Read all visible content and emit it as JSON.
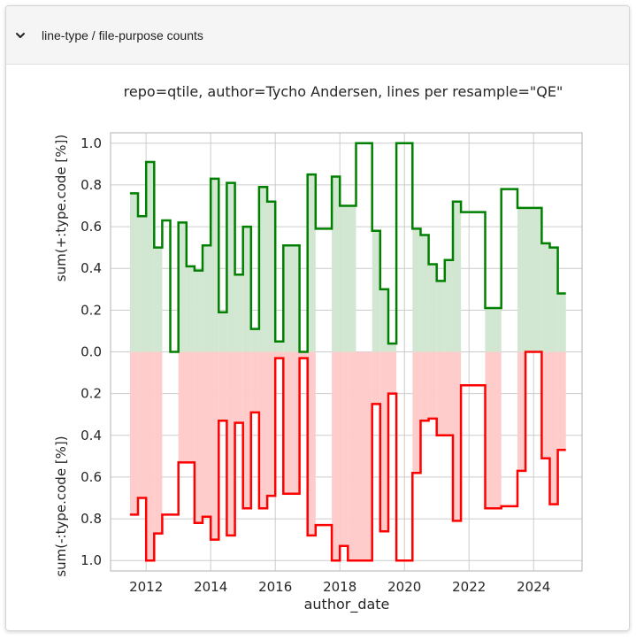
{
  "panel": {
    "title": "line-type / file-purpose counts",
    "toggle_icon": "chevron-down-icon"
  },
  "chart_data": {
    "type": "area",
    "title": "repo=qtile, author=Tycho Andersen, lines per resample=\"QE\"",
    "xlabel": "author_date",
    "ylabel_top": "sum(+:type.code [%])",
    "ylabel_bottom": "sum(-:type.code [%])",
    "x_ticks": [
      "2012",
      "2014",
      "2016",
      "2018",
      "2020",
      "2022",
      "2024"
    ],
    "y_ticks_top": [
      "0.0",
      "0.2",
      "0.4",
      "0.6",
      "0.8",
      "1.0"
    ],
    "y_ticks_bottom": [
      "0.2",
      "0.4",
      "0.6",
      "0.8",
      "1.0"
    ],
    "xlim": [
      2010.9,
      2025.5
    ],
    "ylim": [
      -1.05,
      1.05
    ],
    "step": "post",
    "grid": true,
    "colors": {
      "added_line": "#008000",
      "added_fill": "#d1e7d1",
      "removed_line": "#ff0000",
      "removed_fill": "#ffcccc",
      "grid": "#cccccc",
      "axes": "#bfbfbf"
    },
    "series": [
      {
        "name": "added",
        "values": [
          [
            2011.5,
            0.76
          ],
          [
            2011.75,
            0.65
          ],
          [
            2012.0,
            0.91
          ],
          [
            2012.25,
            0.5
          ],
          [
            2012.5,
            0.63
          ],
          [
            2012.75,
            0.0
          ],
          [
            2013.0,
            0.62
          ],
          [
            2013.25,
            0.41
          ],
          [
            2013.5,
            0.39
          ],
          [
            2013.75,
            0.51
          ],
          [
            2014.0,
            0.83
          ],
          [
            2014.25,
            0.19
          ],
          [
            2014.5,
            0.81
          ],
          [
            2014.75,
            0.37
          ],
          [
            2015.0,
            0.6
          ],
          [
            2015.25,
            0.11
          ],
          [
            2015.5,
            0.79
          ],
          [
            2015.75,
            0.72
          ],
          [
            2016.0,
            0.05
          ],
          [
            2016.25,
            0.51
          ],
          [
            2016.75,
            0.0
          ],
          [
            2017.0,
            0.85
          ],
          [
            2017.25,
            0.59
          ],
          [
            2017.75,
            0.84
          ],
          [
            2018.0,
            0.7
          ],
          [
            2018.5,
            1.0
          ],
          [
            2019.0,
            0.58
          ],
          [
            2019.25,
            0.3
          ],
          [
            2019.5,
            0.04
          ],
          [
            2019.75,
            1.0
          ],
          [
            2020.25,
            0.59
          ],
          [
            2020.5,
            0.56
          ],
          [
            2020.75,
            0.42
          ],
          [
            2021.0,
            0.34
          ],
          [
            2021.25,
            0.44
          ],
          [
            2021.5,
            0.72
          ],
          [
            2021.75,
            0.67
          ],
          [
            2022.5,
            0.21
          ],
          [
            2023.0,
            0.78
          ],
          [
            2023.5,
            0.69
          ],
          [
            2024.25,
            0.52
          ],
          [
            2024.5,
            0.5
          ],
          [
            2024.75,
            0.28
          ]
        ],
        "end": 2025.0
      },
      {
        "name": "removed",
        "values": [
          [
            2011.5,
            0.78
          ],
          [
            2011.75,
            0.7
          ],
          [
            2012.0,
            1.0
          ],
          [
            2012.25,
            0.87
          ],
          [
            2012.5,
            0.78
          ],
          [
            2013.0,
            0.53
          ],
          [
            2013.5,
            0.82
          ],
          [
            2013.75,
            0.79
          ],
          [
            2014.0,
            0.9
          ],
          [
            2014.25,
            0.33
          ],
          [
            2014.5,
            0.88
          ],
          [
            2014.75,
            0.34
          ],
          [
            2015.0,
            0.75
          ],
          [
            2015.25,
            0.29
          ],
          [
            2015.5,
            0.75
          ],
          [
            2015.75,
            0.69
          ],
          [
            2016.0,
            0.03
          ],
          [
            2016.25,
            0.68
          ],
          [
            2016.75,
            0.03
          ],
          [
            2017.0,
            0.88
          ],
          [
            2017.25,
            0.83
          ],
          [
            2017.75,
            1.0
          ],
          [
            2018.0,
            0.93
          ],
          [
            2018.25,
            1.0
          ],
          [
            2019.0,
            0.25
          ],
          [
            2019.25,
            0.86
          ],
          [
            2019.5,
            0.2
          ],
          [
            2019.75,
            1.0
          ],
          [
            2020.25,
            0.58
          ],
          [
            2020.5,
            0.33
          ],
          [
            2020.75,
            0.32
          ],
          [
            2021.0,
            0.4
          ],
          [
            2021.5,
            0.81
          ],
          [
            2021.75,
            0.16
          ],
          [
            2022.5,
            0.75
          ],
          [
            2023.0,
            0.74
          ],
          [
            2023.5,
            0.57
          ],
          [
            2023.75,
            0.0
          ],
          [
            2024.25,
            0.51
          ],
          [
            2024.5,
            0.73
          ],
          [
            2024.75,
            0.47
          ]
        ],
        "end": 2025.0
      }
    ],
    "fill_gaps": [
      [
        2012.5,
        2013.0
      ],
      [
        2017.25,
        2017.75
      ],
      [
        2018.5,
        2019.0
      ],
      [
        2019.75,
        2020.25
      ],
      [
        2021.75,
        2022.5
      ],
      [
        2023.0,
        2023.5
      ],
      [
        2023.75,
        2024.25
      ]
    ]
  }
}
